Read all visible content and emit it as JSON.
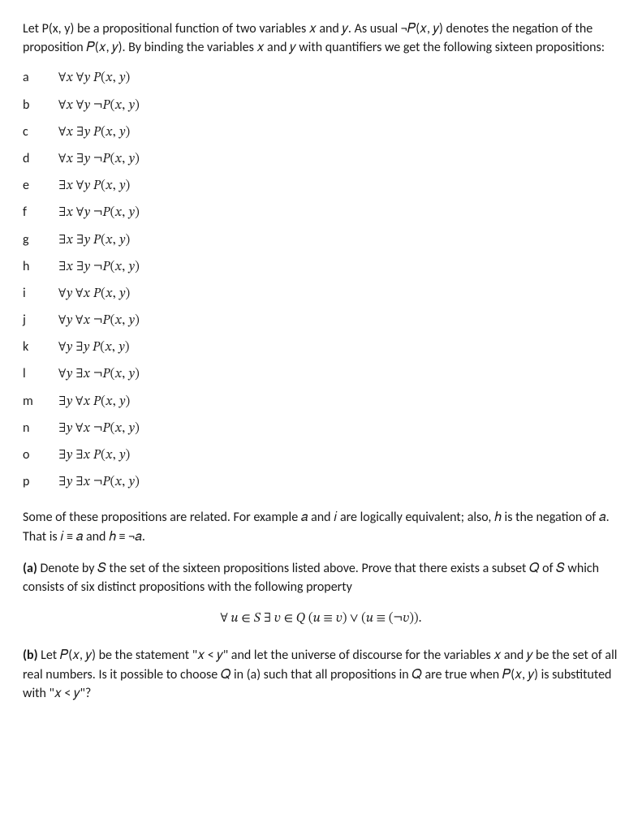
{
  "intro": "Let P(x, y) be a propositional function of two variables 𝑥 and 𝑦. As usual ¬𝑃(𝑥, 𝑦) denotes the negation of the proposition 𝑃(𝑥, 𝑦). By binding the variables 𝑥 and 𝑦 with quantifiers we get the following sixteen propositions:",
  "propositions": [
    {
      "label": "a",
      "formula": "∀𝑥 ∀𝑦 𝑃(𝑥, 𝑦)"
    },
    {
      "label": "b",
      "formula": "∀𝑥 ∀𝑦 ¬𝑃(𝑥, 𝑦)"
    },
    {
      "label": "c",
      "formula": "∀𝑥 ∃𝑦 𝑃(𝑥, 𝑦)"
    },
    {
      "label": "d",
      "formula": "∀𝑥 ∃𝑦 ¬𝑃(𝑥, 𝑦)"
    },
    {
      "label": "e",
      "formula": "∃𝑥 ∀𝑦 𝑃(𝑥, 𝑦)"
    },
    {
      "label": "f",
      "formula": "∃𝑥 ∀𝑦 ¬𝑃(𝑥, 𝑦)"
    },
    {
      "label": "g",
      "formula": "∃𝑥 ∃𝑦 𝑃(𝑥, 𝑦)"
    },
    {
      "label": "h",
      "formula": "∃𝑥 ∃𝑦 ¬𝑃(𝑥, 𝑦)"
    },
    {
      "label": "i",
      "formula": "∀𝑦 ∀𝑥 𝑃(𝑥, 𝑦)"
    },
    {
      "label": "j",
      "formula": "∀𝑦 ∀𝑥 ¬𝑃(𝑥, 𝑦)"
    },
    {
      "label": "k",
      "formula": "∀𝑦 ∃𝑦 𝑃(𝑥, 𝑦)"
    },
    {
      "label": "l",
      "formula": "∀𝑦 ∃𝑥 ¬𝑃(𝑥, 𝑦)"
    },
    {
      "label": "m",
      "formula": "∃𝑦 ∀𝑥 𝑃(𝑥, 𝑦)"
    },
    {
      "label": "n",
      "formula": "∃𝑦 ∀𝑥 ¬𝑃(𝑥, 𝑦)"
    },
    {
      "label": "o",
      "formula": "∃𝑦 ∃𝑥 𝑃(𝑥, 𝑦)"
    },
    {
      "label": "p",
      "formula": "∃𝑦 ∃𝑥 ¬𝑃(𝑥, 𝑦)"
    }
  ],
  "relation_note": "Some of these propositions are related. For example 𝑎 and 𝑖 are logically equivalent; also, ℎ is the negation of 𝑎. That is 𝑖 ≡ 𝑎 and ℎ ≡ ¬𝑎.",
  "part_a": {
    "label": "(a)",
    "text": " Denote by 𝑆 the set of the sixteen propositions listed above. Prove that there exists a subset 𝑄 of 𝑆 which consists of six distinct propositions with the following property",
    "formula": "∀ 𝑢  ∈ 𝑆  ∃ 𝑣 ∈ 𝑄   (𝑢 ≡ 𝑣) ∨ (𝑢 ≡ (¬𝑣))."
  },
  "part_b": {
    "label": "(b)",
    "text": " Let 𝑃(𝑥, 𝑦) be the statement \"𝑥 < 𝑦\" and let the universe of discourse for the variables 𝑥 and 𝑦 be the set of all real numbers. Is it possible to choose 𝑄 in (a) such that all propositions in 𝑄 are true when 𝑃(𝑥, 𝑦) is substituted with \"𝑥 < 𝑦\"?"
  }
}
